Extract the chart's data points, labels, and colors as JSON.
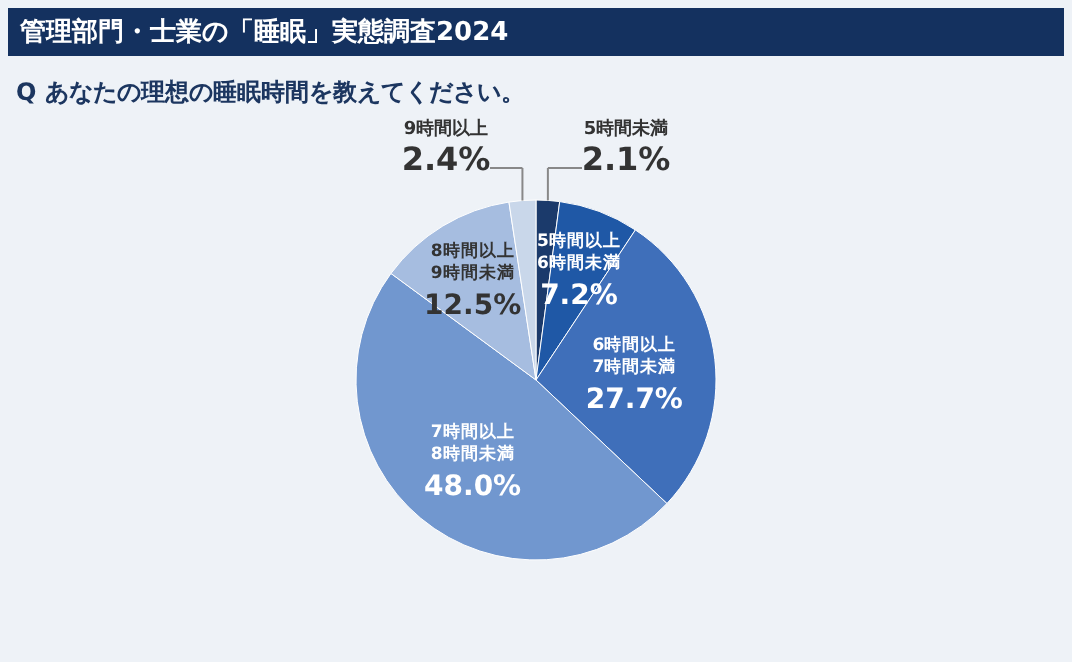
{
  "chart_data": {
    "type": "pie",
    "title": "管理部門・士業の「睡眠」実態調査2024",
    "subtitle": "Q あなたの理想の睡眠時間を教えてください。",
    "categories": [
      "5時間未満",
      "5時間以上 6時間未満",
      "6時間以上 7時間未満",
      "7時間以上 8時間未満",
      "8時間以上 9時間未満",
      "9時間以上"
    ],
    "values": [
      2.1,
      7.2,
      27.7,
      48.0,
      12.5,
      2.4
    ],
    "colors": [
      "#1b3a6b",
      "#1f58a6",
      "#3f6fba",
      "#7197cf",
      "#a6bde0",
      "#c9d7ea"
    ],
    "value_labels": [
      "2.1%",
      "7.2%",
      "27.7%",
      "48.0%",
      "12.5%",
      "2.4%"
    ]
  }
}
